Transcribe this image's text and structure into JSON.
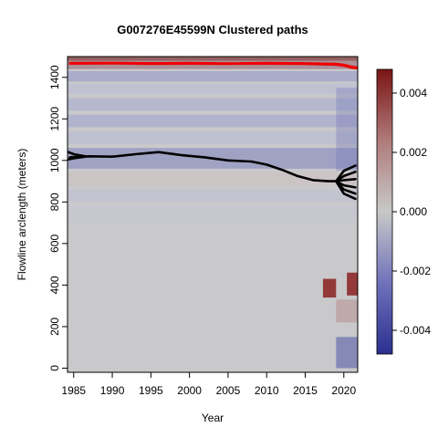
{
  "chart_data": {
    "type": "heatmap",
    "title": "G007276E45599N Clustered paths",
    "xlabel": "Year",
    "ylabel": "Flowline arclength (meters)",
    "xlim": [
      1984.2,
      2021.8
    ],
    "ylim": [
      -20,
      1500
    ],
    "x_ticks": [
      1985,
      1990,
      1995,
      2000,
      2005,
      2010,
      2015,
      2020
    ],
    "y_ticks": [
      0,
      200,
      400,
      600,
      800,
      1000,
      1200,
      1400
    ],
    "colorbar": {
      "range": [
        -0.0048,
        0.0048
      ],
      "ticks": [
        {
          "value": 0.004,
          "label": "0.004"
        },
        {
          "value": 0.002,
          "label": "0.002"
        },
        {
          "value": 0.0,
          "label": "0.000"
        },
        {
          "value": -0.002,
          "label": "-0.002"
        },
        {
          "value": -0.004,
          "label": "-0.004"
        }
      ],
      "colors": {
        "low": "#2b2f8f",
        "mid": "#c8c8c8",
        "high": "#7a1515"
      }
    },
    "grid": false,
    "series": [
      {
        "color": "#000000",
        "x": [
          1984.5,
          1987,
          1990,
          1993,
          1996,
          1999,
          2002,
          2005,
          2008,
          2010,
          2012,
          2014,
          2016,
          2018,
          2019
        ],
        "y": [
          1015,
          1020,
          1018,
          1030,
          1040,
          1025,
          1015,
          1000,
          995,
          980,
          955,
          925,
          905,
          900,
          900
        ]
      },
      {
        "color": "#000000",
        "x": [
          2019,
          2020,
          2021.5
        ],
        "y": [
          900,
          950,
          975
        ]
      },
      {
        "color": "#000000",
        "x": [
          2019,
          2020,
          2021.5
        ],
        "y": [
          900,
          925,
          945
        ]
      },
      {
        "color": "#000000",
        "x": [
          2019,
          2020,
          2021.5
        ],
        "y": [
          900,
          905,
          910
        ]
      },
      {
        "color": "#000000",
        "x": [
          2019,
          2020,
          2021.5
        ],
        "y": [
          900,
          880,
          870
        ]
      },
      {
        "color": "#000000",
        "x": [
          2019,
          2020,
          2021.5
        ],
        "y": [
          900,
          860,
          840
        ]
      },
      {
        "color": "#000000",
        "x": [
          2019,
          2020,
          2021.5
        ],
        "y": [
          900,
          840,
          815
        ]
      },
      {
        "color": "#000000",
        "x": [
          1984.3,
          1985,
          1986.5
        ],
        "y": [
          1040,
          1030,
          1020
        ]
      },
      {
        "color": "#000000",
        "x": [
          1984.3,
          1985,
          1986.5
        ],
        "y": [
          1005,
          1010,
          1018
        ]
      },
      {
        "color": "#ee0000",
        "x": [
          1984.5,
          1990,
          1995,
          2000,
          2005,
          2010,
          2015,
          2019,
          2020,
          2021,
          2021.8
        ],
        "y": [
          1470,
          1471,
          1469,
          1470,
          1468,
          1470,
          1469,
          1466,
          1462,
          1452,
          1448
        ]
      },
      {
        "color": "#ee0000",
        "x": [
          1984.5,
          1990,
          1995,
          2000,
          2005,
          2010,
          2015,
          2019,
          2020,
          2021,
          2021.8
        ],
        "y": [
          1465,
          1466,
          1464,
          1465,
          1464,
          1465,
          1464,
          1460,
          1455,
          1445,
          1442
        ]
      }
    ]
  }
}
